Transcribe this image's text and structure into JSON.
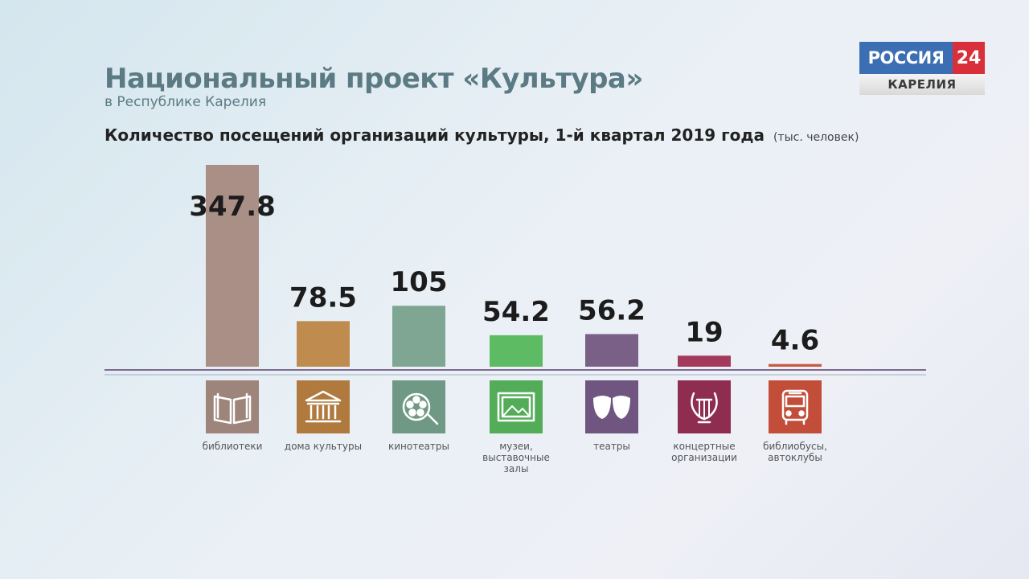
{
  "header": {
    "title": "Национальный проект «Культура»",
    "subtitle": "в Республике Карелия",
    "heading": "Количество посещений организаций культуры, 1-й квартал 2019 года",
    "unit": "(тыс. человек)"
  },
  "logo": {
    "name": "РОССИЯ",
    "number": "24",
    "region": "КАРЕЛИЯ"
  },
  "chart_data": {
    "type": "bar",
    "categories": [
      [
        "библиотеки"
      ],
      [
        "дома культуры"
      ],
      [
        "кинотеатры"
      ],
      [
        "музеи,",
        "выставочные",
        "залы"
      ],
      [
        "театры"
      ],
      [
        "концертные",
        "организации"
      ],
      [
        "библиобусы,",
        "автоклубы"
      ]
    ],
    "values": [
      347.8,
      78.5,
      105,
      54.2,
      56.2,
      19,
      4.6
    ],
    "value_labels": [
      "347.8",
      "78.5",
      "105",
      "54.2",
      "56.2",
      "19",
      "4.6"
    ],
    "icons": [
      "book-icon",
      "house-of-culture-icon",
      "film-reel-icon",
      "picture-icon",
      "theatre-masks-icon",
      "lyre-icon",
      "bus-icon"
    ],
    "colors": [
      "#a98f86",
      "#bf8b4f",
      "#7ea693",
      "#5dbb63",
      "#7a5f87",
      "#a33a5e",
      "#c55a43"
    ],
    "icon_colors": [
      "#9e857c",
      "#b07a3f",
      "#6f9985",
      "#53ad58",
      "#6f5580",
      "#8e2d50",
      "#c24e3a"
    ],
    "ylim": [
      0,
      347.8
    ],
    "grid": false,
    "legend": "none"
  }
}
